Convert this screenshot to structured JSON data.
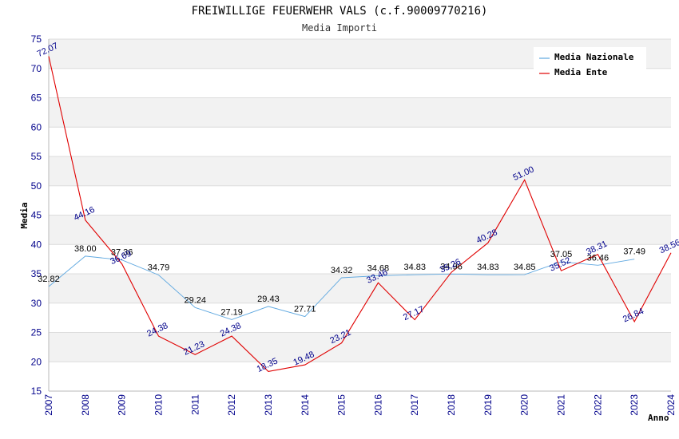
{
  "chart_data": {
    "type": "line",
    "title": "FREIWILLIGE FEUERWEHR VALS (c.f.90009770216)",
    "subtitle": "Media Importi",
    "xlabel": "Anno",
    "ylabel": "Media",
    "ylim": [
      15,
      75
    ],
    "yticks": [
      15,
      20,
      25,
      30,
      35,
      40,
      45,
      50,
      55,
      60,
      65,
      70,
      75
    ],
    "categories": [
      "2007",
      "2008",
      "2009",
      "2010",
      "2011",
      "2012",
      "2013",
      "2014",
      "2015",
      "2016",
      "2017",
      "2018",
      "2019",
      "2020",
      "2021",
      "2022",
      "2023",
      "2024"
    ],
    "legend_position": "top-right",
    "series": [
      {
        "name": "Media Nazionale",
        "color": "#5fa8e0",
        "values": [
          32.82,
          38.0,
          37.36,
          34.79,
          29.24,
          27.19,
          29.43,
          27.71,
          34.32,
          34.68,
          34.83,
          34.96,
          34.83,
          34.85,
          37.05,
          36.46,
          37.49,
          null
        ],
        "labels": [
          "32.82",
          "38.00",
          "37.36",
          "34.79",
          "29.24",
          "27.19",
          "29.43",
          "27.71",
          "34.32",
          "34.68",
          "34.83",
          "34.96",
          "34.83",
          "34.85",
          "37.05",
          "36.46",
          "37.49",
          ""
        ]
      },
      {
        "name": "Media Ente",
        "color": "#e00000",
        "values": [
          72.07,
          44.16,
          36.69,
          24.38,
          21.23,
          24.38,
          18.35,
          19.48,
          23.21,
          33.46,
          27.17,
          35.26,
          40.28,
          51.0,
          35.52,
          38.31,
          26.84,
          38.56
        ],
        "labels": [
          "72.07",
          "44.16",
          "36.69",
          "24.38",
          "21.23",
          "24.38",
          "18.35",
          "19.48",
          "23.21",
          "33.46",
          "27.17",
          "35.26",
          "40.28",
          "51.00",
          "35.52",
          "38.31",
          "26.84",
          "38.56"
        ]
      }
    ]
  }
}
